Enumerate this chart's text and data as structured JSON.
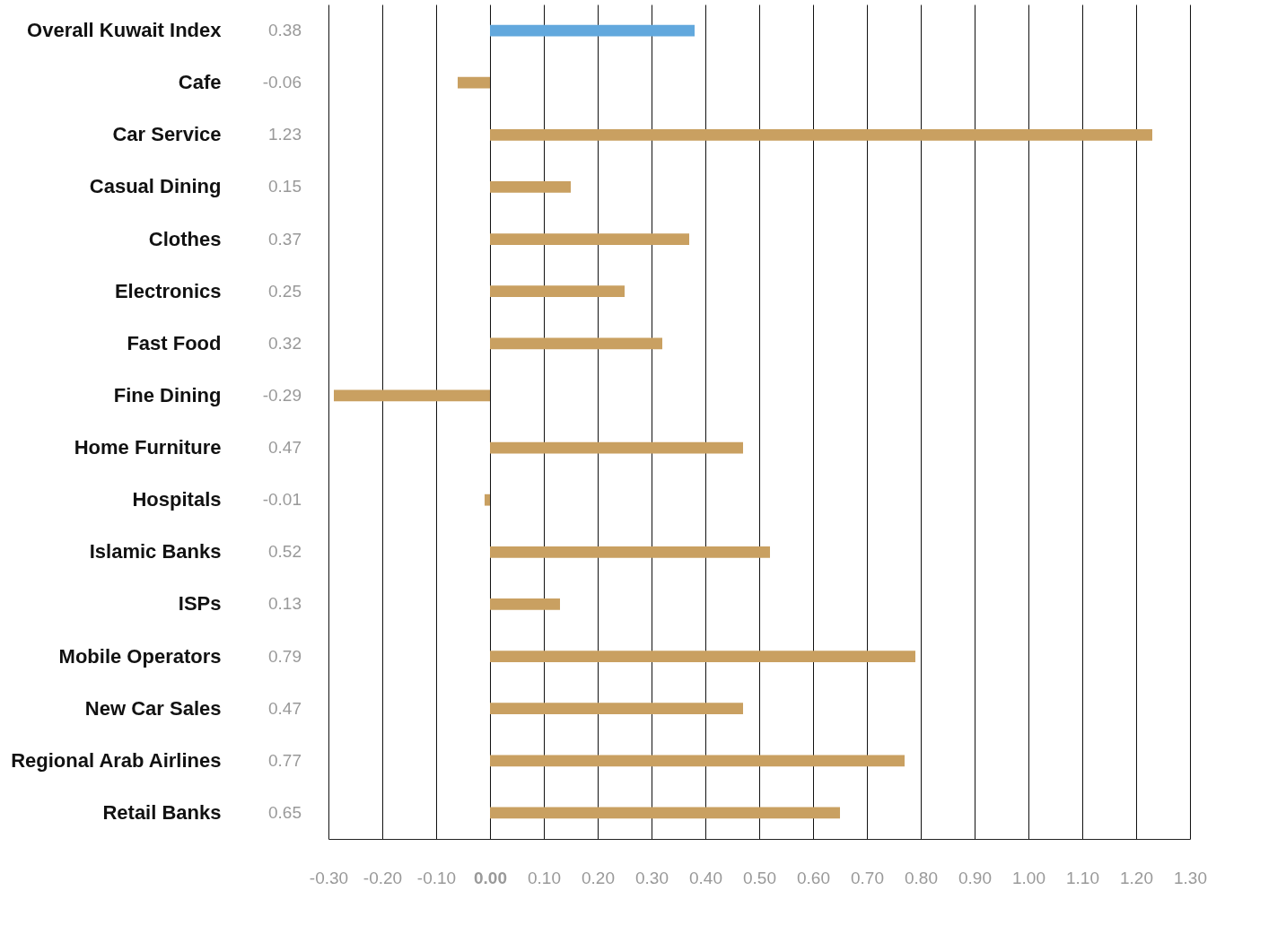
{
  "chart_data": {
    "type": "bar",
    "orientation": "horizontal",
    "categories": [
      "Overall Kuwait Index",
      "Cafe",
      "Car Service",
      "Casual Dining",
      "Clothes",
      "Electronics",
      "Fast Food",
      "Fine Dining",
      "Home Furniture",
      "Hospitals",
      "Islamic Banks",
      "ISPs",
      "Mobile Operators",
      "New Car Sales",
      "Regional Arab Airlines",
      "Retail Banks"
    ],
    "values": [
      0.38,
      -0.06,
      1.23,
      0.15,
      0.37,
      0.25,
      0.32,
      -0.29,
      0.47,
      -0.01,
      0.52,
      0.13,
      0.79,
      0.47,
      0.77,
      0.65
    ],
    "value_labels": [
      "0.38",
      "-0.06",
      "1.23",
      "0.15",
      "0.37",
      "0.25",
      "0.32",
      "-0.29",
      "0.47",
      "-0.01",
      "0.52",
      "0.13",
      "0.79",
      "0.47",
      "0.77",
      "0.65"
    ],
    "colors": [
      "#62a8dd",
      "#c9a061",
      "#c9a061",
      "#c9a061",
      "#c9a061",
      "#c9a061",
      "#c9a061",
      "#c9a061",
      "#c9a061",
      "#c9a061",
      "#c9a061",
      "#c9a061",
      "#c9a061",
      "#c9a061",
      "#c9a061",
      "#c9a061"
    ],
    "xlim": [
      -0.3,
      1.3
    ],
    "xticks": [
      {
        "value": -0.3,
        "label": "-0.30"
      },
      {
        "value": -0.2,
        "label": "-0.20"
      },
      {
        "value": -0.1,
        "label": "-0.10"
      },
      {
        "value": 0,
        "label": "0.00"
      },
      {
        "value": 0.1,
        "label": "0.10"
      },
      {
        "value": 0.2,
        "label": "0.20"
      },
      {
        "value": 0.3,
        "label": "0.30"
      },
      {
        "value": 0.4,
        "label": "0.40"
      },
      {
        "value": 0.5,
        "label": "0.50"
      },
      {
        "value": 0.6,
        "label": "0.60"
      },
      {
        "value": 0.7,
        "label": "0.70"
      },
      {
        "value": 0.8,
        "label": "0.80"
      },
      {
        "value": 0.9,
        "label": "0.90"
      },
      {
        "value": 1.0,
        "label": "1.00"
      },
      {
        "value": 1.1,
        "label": "1.10"
      },
      {
        "value": 1.2,
        "label": "1.20"
      },
      {
        "value": 1.3,
        "label": "1.30"
      }
    ],
    "grid": "x"
  }
}
